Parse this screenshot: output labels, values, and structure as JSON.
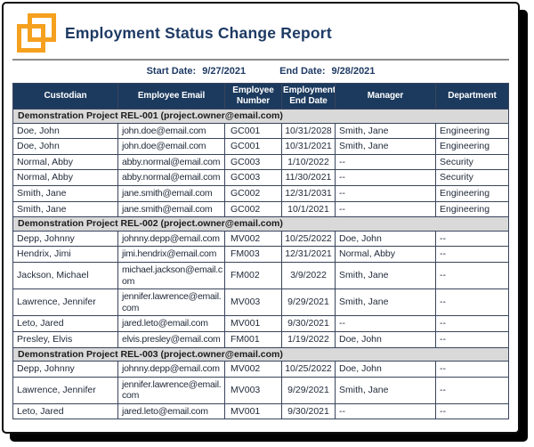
{
  "header": {
    "title": "Employment Status Change Report",
    "logo_icon": "overlapping-squares-logo"
  },
  "filters": {
    "start_date_label": "Start Date:",
    "start_date_value": "9/27/2021",
    "end_date_label": "End Date:",
    "end_date_value": "9/28/2021"
  },
  "colors": {
    "navy_header": "#1C3A5E",
    "title_navy": "#1E3A64",
    "logo_orange": "#F5A01E",
    "group_row_bg": "#D9D9D9",
    "cell_border": "#39455C",
    "divider_gray": "#8C8C8C"
  },
  "table": {
    "columns": [
      "Custodian",
      "Employee Email",
      "Employee Number",
      "Employment End Date",
      "Manager",
      "Department"
    ],
    "groups": [
      {
        "label": "Demonstration Project REL-001 (project.owner@email.com)",
        "rows": [
          [
            "Doe, John",
            "john.doe@email.com",
            "GC001",
            "10/31/2028",
            "Smith, Jane",
            "Engineering"
          ],
          [
            "Doe, John",
            "john.doe@email.com",
            "GC001",
            "10/31/2021",
            "Smith, Jane",
            "Engineering"
          ],
          [
            "Normal, Abby",
            "abby.normal@email.com",
            "GC003",
            "1/10/2022",
            "--",
            "Security"
          ],
          [
            "Normal, Abby",
            "abby.normal@email.com",
            "GC003",
            "11/30/2021",
            "--",
            "Security"
          ],
          [
            "Smith, Jane",
            "jane.smith@email.com",
            "GC002",
            "12/31/2031",
            "--",
            "Engineering"
          ],
          [
            "Smith, Jane",
            "jane.smith@email.com",
            "GC002",
            "10/1/2021",
            "--",
            "Engineering"
          ]
        ]
      },
      {
        "label": "Demonstration Project REL-002 (project.owner@email.com)",
        "rows": [
          [
            "Depp, Johnny",
            "johnny.depp@email.com",
            "MV002",
            "10/25/2022",
            "Doe, John",
            "--"
          ],
          [
            "Hendrix, Jimi",
            "jimi.hendrix@email.com",
            "FM003",
            "12/31/2021",
            "Normal, Abby",
            "--"
          ],
          [
            "Jackson, Michael",
            "michael.jackson@email.com",
            "FM002",
            "3/9/2022",
            "Smith, Jane",
            "--"
          ],
          [
            "Lawrence, Jennifer",
            "jennifer.lawrence@email.com",
            "MV003",
            "9/29/2021",
            "Smith, Jane",
            "--"
          ],
          [
            "Leto, Jared",
            "jared.leto@email.com",
            "MV001",
            "9/30/2021",
            "--",
            "--"
          ],
          [
            "Presley, Elvis",
            "elvis.presley@email.com",
            "FM001",
            "1/19/2022",
            "Doe, John",
            "--"
          ]
        ]
      },
      {
        "label": "Demonstration Project REL-003 (project.owner@email.com)",
        "rows": [
          [
            "Depp, Johnny",
            "johnny.depp@email.com",
            "MV002",
            "10/25/2022",
            "Doe, John",
            "--"
          ],
          [
            "Lawrence, Jennifer",
            "jennifer.lawrence@email.com",
            "MV003",
            "9/29/2021",
            "Smith, Jane",
            "--"
          ],
          [
            "Leto, Jared",
            "jared.leto@email.com",
            "MV001",
            "9/30/2021",
            "--",
            "--"
          ]
        ]
      }
    ]
  }
}
